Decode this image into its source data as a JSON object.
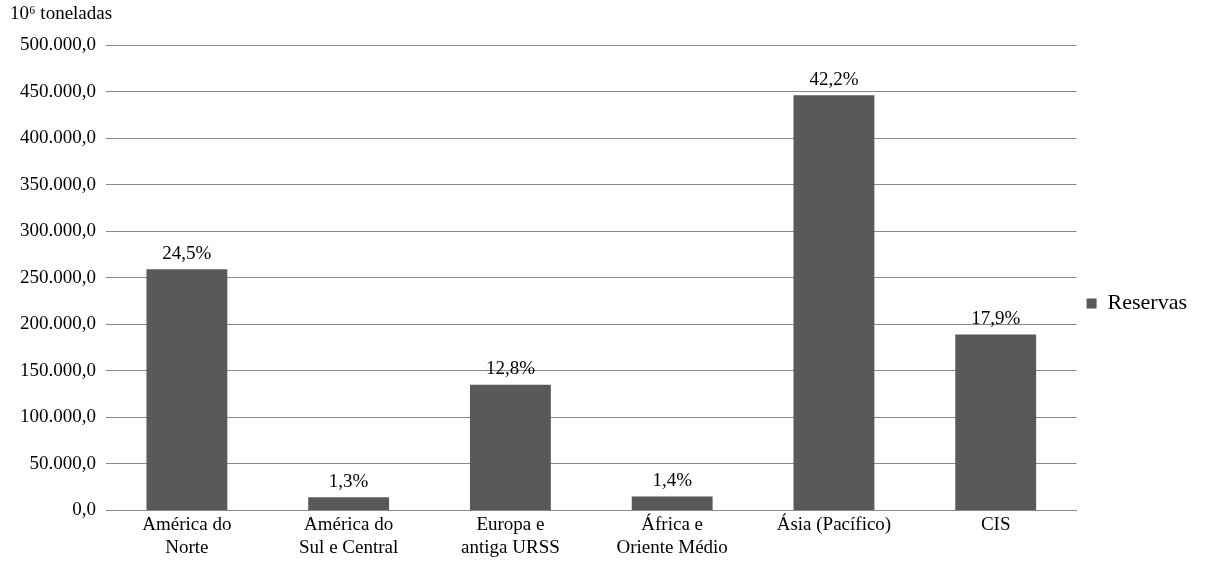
{
  "chart_data": {
    "type": "bar",
    "ylabel": "10⁶ toneladas",
    "categories": [
      "América do Norte",
      "América do Sul e Central",
      "Europa e antiga URSS",
      "África e Oriente Médio",
      "Ásia (Pacífico)",
      "CIS"
    ],
    "series": [
      {
        "name": "Reservas",
        "color": "#595959",
        "values": [
          259000,
          14000,
          135000,
          15000,
          446000,
          189000
        ]
      }
    ],
    "annotations": [
      {
        "text": "24,5%",
        "x": "América do Norte",
        "y": 259000
      },
      {
        "text": "1,3%",
        "x": "América do Sul e Central",
        "y": 14000
      },
      {
        "text": "12,8%",
        "x": "Europa e antiga URSS",
        "y": 135000
      },
      {
        "text": "1,4%",
        "x": "África e Oriente Médio",
        "y": 15000
      },
      {
        "text": "42,2%",
        "x": "Ásia (Pacífico)",
        "y": 446000
      },
      {
        "text": "17,9%",
        "x": "CIS",
        "y": 189000
      }
    ],
    "ylim": [
      0,
      500000
    ],
    "yticks": [
      {
        "value": 0,
        "label": "0,0"
      },
      {
        "value": 50000,
        "label": "50.000,0"
      },
      {
        "value": 100000,
        "label": "100.000,0"
      },
      {
        "value": 150000,
        "label": "150.000,0"
      },
      {
        "value": 200000,
        "label": "200.000,0"
      },
      {
        "value": 250000,
        "label": "250.000,0"
      },
      {
        "value": 300000,
        "label": "300.000,0"
      },
      {
        "value": 350000,
        "label": "350.000,0"
      },
      {
        "value": 400000,
        "label": "400.000,0"
      },
      {
        "value": 450000,
        "label": "450.000,0"
      },
      {
        "value": 500000,
        "label": "500.000,0"
      }
    ],
    "grid": "y",
    "legend": "right"
  }
}
